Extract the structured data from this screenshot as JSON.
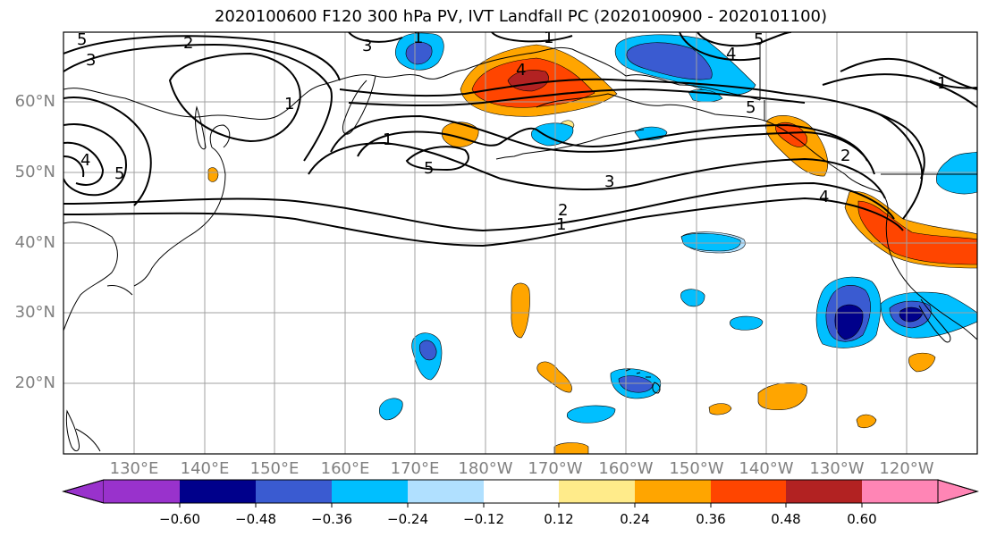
{
  "title": "2020100600 F120 300 hPa PV, IVT Landfall PC (2020100900 - 2020101100)",
  "lat_labels": [
    "60°N",
    "50°N",
    "40°N",
    "30°N",
    "20°N"
  ],
  "lon_labels": [
    "130°E",
    "140°E",
    "150°E",
    "160°E",
    "170°E",
    "180°W",
    "170°W",
    "160°W",
    "150°W",
    "140°W",
    "130°W",
    "120°W"
  ],
  "colorbar": {
    "tick_labels": [
      "−0.60",
      "−0.48",
      "−0.36",
      "−0.24",
      "−0.12",
      "0.12",
      "0.24",
      "0.36",
      "0.48",
      "0.60"
    ],
    "colors": [
      "#9932cc",
      "#00008b",
      "#3a5bd1",
      "#00bfff",
      "#b0e0ff",
      "#ffffff",
      "#ffeb8a",
      "#ffa500",
      "#ff4500",
      "#b22222",
      "#ff85b5"
    ]
  },
  "contour_labels": [
    "5",
    "2",
    "3",
    "3",
    "1",
    "4",
    "5",
    "1",
    "4",
    "5",
    "1",
    "1",
    "5",
    "3",
    "2",
    "1",
    "4",
    "5",
    "4",
    "2",
    "1"
  ]
}
